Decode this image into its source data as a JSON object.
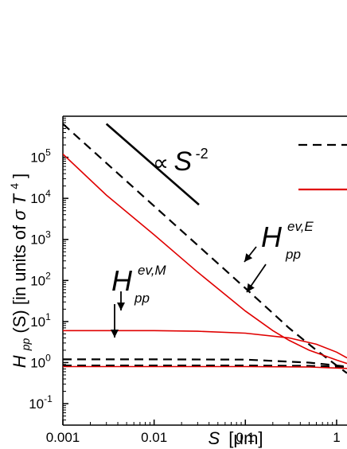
{
  "chart_data": {
    "type": "line",
    "xlabel": {
      "var": "S",
      "unit": "[μm]"
    },
    "ylabel": {
      "prefix": "H",
      "sub": "pp",
      "mid": "(S) [in units of ",
      "sigma": "σ",
      "T": "T",
      "power": "4",
      "suffix": "]"
    },
    "xscale": "log",
    "yscale": "log",
    "xlim": [
      0.001,
      1.3
    ],
    "ylim": [
      0.03,
      1000000
    ],
    "x_ticks": [
      "0.001",
      "0.01",
      "0.1",
      "1"
    ],
    "y_ticks": [
      {
        "base": "10",
        "exp": "-1"
      },
      {
        "base": "10",
        "exp": "0"
      },
      {
        "base": "10",
        "exp": "1"
      },
      {
        "base": "10",
        "exp": "2"
      },
      {
        "base": "10",
        "exp": "3"
      },
      {
        "base": "10",
        "exp": "4"
      },
      {
        "base": "10",
        "exp": "5"
      }
    ],
    "series": [
      {
        "color": "#000000",
        "dash": true,
        "points": [
          [
            0.001,
            650000
          ],
          [
            0.01,
            6500
          ],
          [
            0.1,
            65
          ],
          [
            0.3,
            7
          ],
          [
            0.6,
            2
          ],
          [
            1.3,
            0.55
          ]
        ]
      },
      {
        "color": "#000000",
        "dash": true,
        "points": [
          [
            0.001,
            1.2
          ],
          [
            0.01,
            1.2
          ],
          [
            0.1,
            1.18
          ],
          [
            0.5,
            1.0
          ],
          [
            1.0,
            0.85
          ],
          [
            1.3,
            0.8
          ]
        ]
      },
      {
        "color": "#000000",
        "dash": true,
        "points": [
          [
            0.001,
            0.85
          ],
          [
            0.1,
            0.85
          ],
          [
            0.5,
            0.83
          ],
          [
            1.3,
            0.78
          ]
        ]
      },
      {
        "color": "#e00000",
        "dash": false,
        "points": [
          [
            0.001,
            120000
          ],
          [
            0.003,
            12000
          ],
          [
            0.01,
            1300
          ],
          [
            0.03,
            160
          ],
          [
            0.1,
            18
          ],
          [
            0.2,
            6
          ],
          [
            0.3,
            3.5
          ],
          [
            0.5,
            2
          ],
          [
            1.0,
            1.15
          ],
          [
            1.3,
            0.95
          ]
        ]
      },
      {
        "color": "#e00000",
        "dash": false,
        "points": [
          [
            0.001,
            6
          ],
          [
            0.01,
            6
          ],
          [
            0.03,
            5.8
          ],
          [
            0.1,
            5.2
          ],
          [
            0.3,
            4
          ],
          [
            0.6,
            2.8
          ],
          [
            1.0,
            1.8
          ],
          [
            1.3,
            1.3
          ]
        ]
      },
      {
        "color": "#e00000",
        "dash": false,
        "points": [
          [
            0.001,
            0.8
          ],
          [
            0.1,
            0.8
          ],
          [
            0.5,
            0.78
          ],
          [
            1.3,
            0.72
          ]
        ]
      }
    ],
    "reference_line": {
      "color": "#000000",
      "points": [
        [
          0.003,
          650000
        ],
        [
          0.031,
          7000
        ]
      ]
    },
    "annotations": {
      "slope": {
        "prop": "∝",
        "var": "S",
        "exp": "-2"
      },
      "E": {
        "base": "H",
        "sup": "ev,E",
        "sub": "pp"
      },
      "M": {
        "base": "H",
        "sup": "ev,M",
        "sub": "pp"
      }
    },
    "legend_placement": "top-right (cut off)",
    "legend_entries": [
      {
        "color": "#000000",
        "dash": true,
        "label": ""
      },
      {
        "color": "#e00000",
        "dash": false,
        "label": ""
      }
    ]
  }
}
